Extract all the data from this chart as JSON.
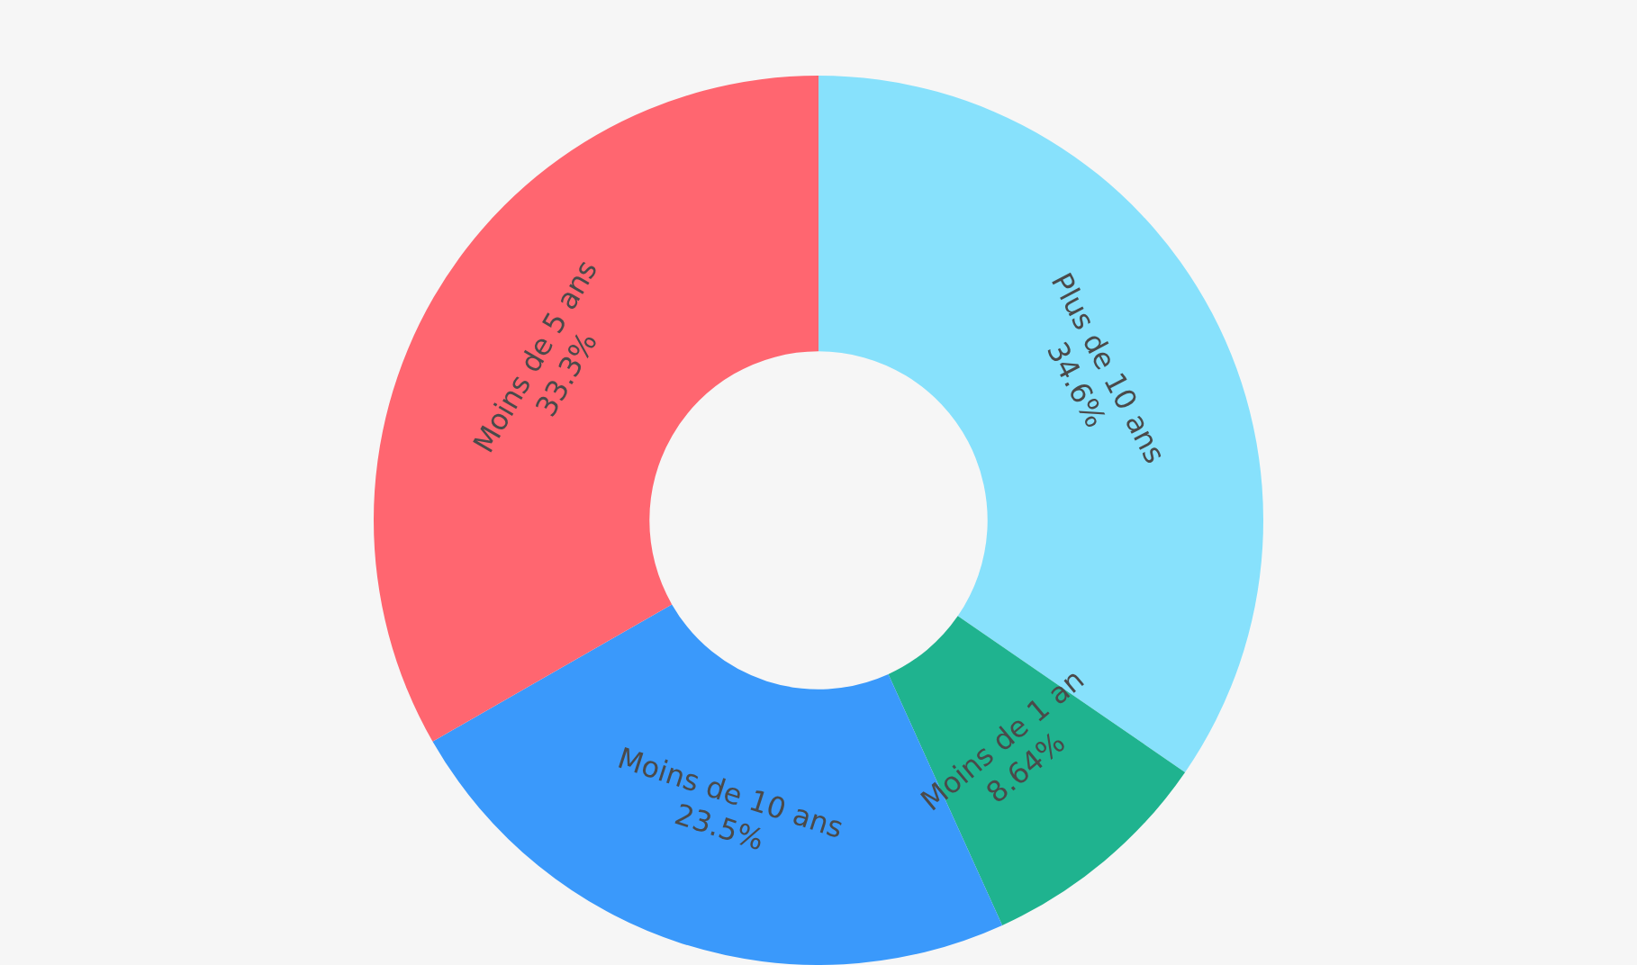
{
  "chart_data": {
    "type": "donut",
    "categories": [
      "Plus de 10 ans",
      "Moins de 1 an",
      "Moins de 10 ans",
      "Moins de 5 ans"
    ],
    "values": [
      34.6,
      8.64,
      23.5,
      33.3
    ],
    "value_labels": [
      "34.6%",
      "8.64%",
      "23.5%",
      "33.3%"
    ],
    "colors": [
      "#87e1fc",
      "#1fb38f",
      "#3a99fb",
      "#ff6670"
    ],
    "legend": false
  }
}
